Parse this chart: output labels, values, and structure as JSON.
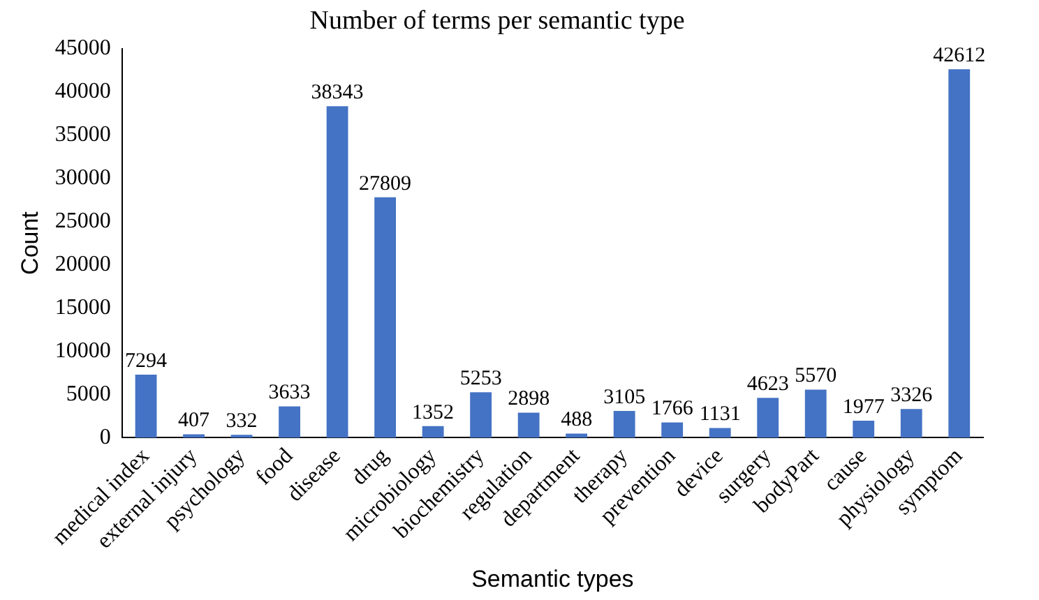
{
  "chart_data": {
    "type": "bar",
    "title": "Number of terms per semantic type",
    "xlabel": "Semantic types",
    "ylabel": "Count",
    "categories": [
      "medical index",
      "external injury",
      "psychology",
      "food",
      "disease",
      "drug",
      "microbiology",
      "biochemistry",
      "regulation",
      "department",
      "therapy",
      "prevention",
      "device",
      "surgery",
      "bodyPart",
      "cause",
      "physiology",
      "symptom"
    ],
    "values": [
      7294,
      407,
      332,
      3633,
      38343,
      27809,
      1352,
      5253,
      2898,
      488,
      3105,
      1766,
      1131,
      4623,
      5570,
      1977,
      3326,
      42612
    ],
    "color": "#4472c4",
    "ylim": [
      0,
      45000
    ],
    "yticks": [
      0,
      5000,
      10000,
      15000,
      20000,
      25000,
      30000,
      35000,
      40000,
      45000
    ],
    "grid": false,
    "data_labels": true,
    "legend": false
  }
}
